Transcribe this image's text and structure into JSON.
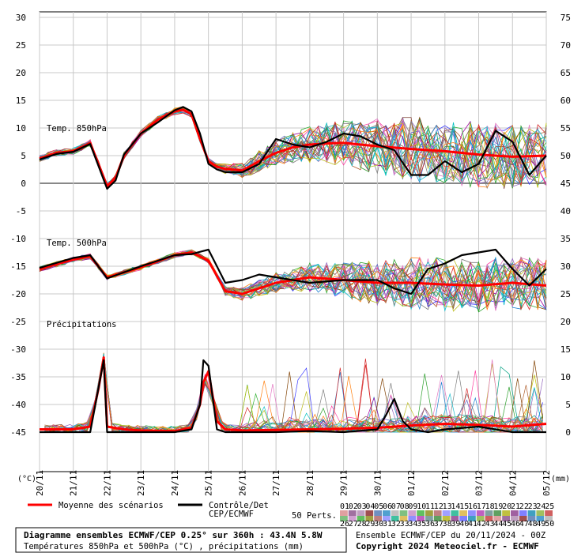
{
  "chart_data": {
    "type": "line",
    "sections": {
      "t850_label": "Temp. 850hPa",
      "t500_label": "Temp. 500hPa",
      "precip_label": "Précipitations"
    },
    "left_axis": {
      "unit": "(°C)",
      "ticks": [
        30,
        25,
        20,
        15,
        10,
        5,
        0,
        -5,
        -10,
        -15,
        -20,
        -25,
        -30,
        -35,
        -40,
        -45
      ],
      "range": [
        -45,
        30
      ]
    },
    "right_axis": {
      "unit": "(mm)",
      "ticks": [
        75,
        70,
        65,
        60,
        55,
        50,
        45,
        40,
        35,
        30,
        25,
        20,
        15,
        10,
        5,
        0
      ],
      "range": [
        0,
        75
      ]
    },
    "x_labels": [
      "20/11",
      "21/11",
      "22/11",
      "23/11",
      "24/11",
      "25/11",
      "26/11",
      "27/11",
      "28/11",
      "29/11",
      "30/11",
      "01/12",
      "02/12",
      "03/12",
      "04/12",
      "05/12"
    ],
    "series": [
      {
        "name": "Moyenne des scénarios",
        "group": "t850",
        "x": [
          0,
          0.5,
          1,
          1.5,
          2,
          2.25,
          2.5,
          3,
          3.5,
          4,
          4.25,
          4.5,
          4.75,
          5,
          5.25,
          5.5,
          6,
          6.5,
          7,
          7.5,
          8,
          8.5,
          9,
          10,
          11,
          12,
          13,
          14,
          15
        ],
        "values": [
          4.5,
          5.5,
          5.8,
          7.3,
          -0.5,
          1,
          5,
          9,
          11.5,
          13,
          13.3,
          12.5,
          8,
          4,
          3,
          2.6,
          2.3,
          4,
          5.5,
          6.5,
          7,
          7.2,
          7.3,
          6.7,
          6.2,
          5.8,
          5.2,
          4.8,
          5
        ]
      },
      {
        "name": "Contrôle/Det CEP/ECMWF",
        "group": "t850",
        "x": [
          0,
          0.5,
          1,
          1.5,
          2,
          2.25,
          2.5,
          3,
          3.5,
          4,
          4.25,
          4.5,
          4.75,
          5,
          5.25,
          5.5,
          6,
          6.5,
          7,
          7.5,
          8,
          8.5,
          9,
          9.5,
          10,
          10.5,
          11,
          11.5,
          12,
          12.5,
          13,
          13.5,
          14,
          14.5,
          15
        ],
        "values": [
          4.3,
          5.3,
          5.7,
          7.1,
          -1,
          0.5,
          5.2,
          9,
          11,
          13.2,
          13.8,
          13,
          9,
          3.5,
          2.5,
          2,
          2,
          3.5,
          8,
          7,
          6.5,
          7.5,
          9,
          8.5,
          7,
          6,
          1.5,
          1.5,
          4,
          2,
          3.5,
          9.5,
          7.5,
          1.5,
          5
        ]
      },
      {
        "name": "Moyenne des scénarios",
        "group": "t500",
        "x": [
          0,
          1,
          1.5,
          2,
          3,
          4,
          4.5,
          5,
          5.5,
          6,
          7,
          8,
          9,
          10,
          11,
          12,
          13,
          14,
          15
        ],
        "values": [
          -15.5,
          -13.8,
          -13.2,
          -17,
          -15.2,
          -13,
          -12.5,
          -14,
          -19.5,
          -20,
          -18,
          -17,
          -17.5,
          -18,
          -18,
          -18.3,
          -18.5,
          -18,
          -18.5
        ]
      },
      {
        "name": "Contrôle/Det CEP/ECMWF",
        "group": "t500",
        "x": [
          0,
          1,
          1.5,
          2,
          3,
          4,
          4.5,
          5,
          5.5,
          6,
          6.5,
          7,
          8,
          9,
          10,
          10.5,
          11,
          11.5,
          12,
          12.5,
          13,
          13.5,
          14,
          14.5,
          15
        ],
        "values": [
          -15.3,
          -13.5,
          -13,
          -17.2,
          -15,
          -13,
          -12.8,
          -12,
          -18,
          -17.5,
          -16.5,
          -17,
          -18,
          -17.5,
          -17.5,
          -19,
          -20,
          -15.5,
          -14.5,
          -13,
          -12.5,
          -12,
          -15.5,
          -18.5,
          -15.5
        ]
      },
      {
        "name": "Moyenne des scénarios",
        "group": "precip",
        "unit": "mm",
        "x": [
          0,
          1,
          1.5,
          1.75,
          1.9,
          2,
          2.5,
          3,
          4,
          4.5,
          4.75,
          4.85,
          5,
          5.25,
          5.5,
          6,
          7,
          8,
          9,
          10,
          11,
          12,
          13,
          14,
          15
        ],
        "values": [
          0.5,
          0.5,
          1,
          8,
          13.5,
          1,
          0.5,
          0.3,
          0.2,
          0.8,
          5,
          9,
          11,
          2,
          0.5,
          0.3,
          0.4,
          0.5,
          0.6,
          0.8,
          1.2,
          1.5,
          1.3,
          1,
          1.5
        ]
      },
      {
        "name": "Contrôle/Det CEP/ECMWF",
        "group": "precip",
        "unit": "mm",
        "x": [
          0,
          1,
          1.5,
          1.9,
          2,
          2.5,
          3,
          4,
          4.5,
          4.75,
          4.85,
          5,
          5.25,
          5.5,
          6,
          7,
          8,
          9,
          10,
          10.25,
          10.5,
          10.75,
          11,
          11.5,
          12,
          13,
          14,
          15
        ],
        "values": [
          0,
          0,
          0,
          13,
          0,
          0,
          0,
          0,
          0.5,
          5,
          13,
          12,
          0.5,
          0,
          0,
          0,
          0.2,
          0,
          0.5,
          3,
          6,
          2,
          0.5,
          0,
          0.5,
          1,
          0,
          0
        ]
      }
    ]
  },
  "legend": {
    "mean_label": "Moyenne des scénarios",
    "control_label_1": "Contrôle/Det",
    "control_label_2": "CEP/ECMWF",
    "mean_color": "#ff0000",
    "control_color": "#000000",
    "perts_label": "50 Perts.",
    "perts_row1": [
      "01",
      "02",
      "03",
      "04",
      "05",
      "06",
      "07",
      "08",
      "09",
      "10",
      "11",
      "12",
      "13",
      "14",
      "15",
      "16",
      "17",
      "18",
      "19",
      "20",
      "21",
      "22",
      "23",
      "24",
      "25"
    ],
    "perts_row2": [
      "26",
      "27",
      "28",
      "29",
      "30",
      "31",
      "32",
      "33",
      "34",
      "35",
      "36",
      "37",
      "38",
      "39",
      "40",
      "41",
      "42",
      "43",
      "44",
      "45",
      "46",
      "47",
      "48",
      "49",
      "50"
    ]
  },
  "footer": {
    "title": "Diagramme ensembles ECMWF/CEP 0.25° sur 360h : 43.4N 5.8W",
    "subtitle": "Températures 850hPa et 500hPa (°C) , précipitations (mm)",
    "run_info": "Ensemble ECMWF/CEP du 20/11/2024 - 00Z",
    "copyright": "Copyright 2024 Meteociel.fr - ECMWF"
  }
}
